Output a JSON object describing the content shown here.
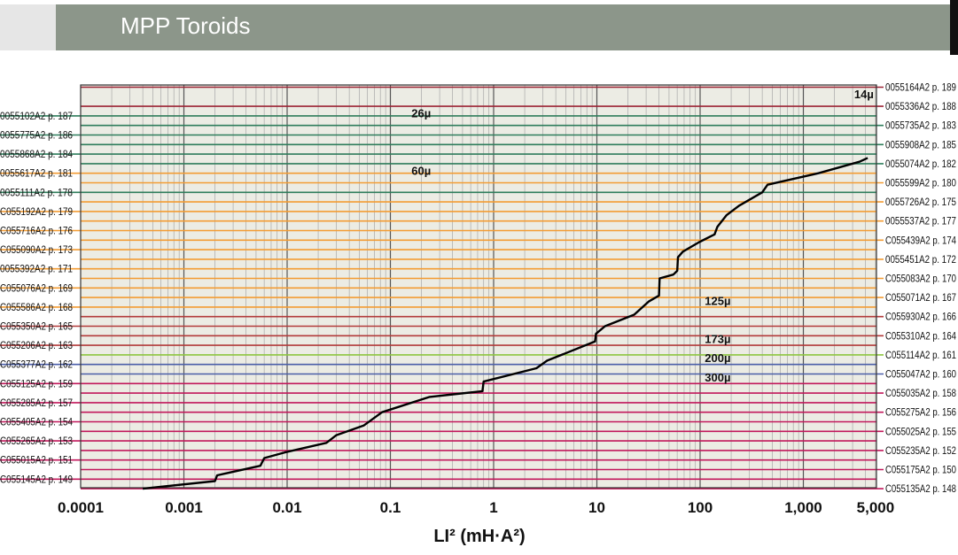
{
  "header": {
    "title": "MPP Toroids"
  },
  "chart_data": {
    "type": "line",
    "xlabel": "LI² (mH·A²)",
    "x_scale": "log",
    "xlim": [
      0.0001,
      5000
    ],
    "x_ticks": [
      "0.0001",
      "0.001",
      "0.01",
      "0.1",
      "1",
      "10",
      "100",
      "1,000",
      "5,000"
    ],
    "x_tick_values": [
      0.0001,
      0.001,
      0.01,
      0.1,
      1,
      10,
      100,
      1000,
      5000
    ],
    "grid": true,
    "colors": {
      "14u": "#9b2335",
      "26u": "#2e7d5b",
      "60u": "#f39c33",
      "125u": "#b23a3a",
      "147u": "#8dc63f",
      "173u": "#4a5ea8",
      "200u": "#c2185b",
      "300u": "#c2185b",
      "curve": "#000000",
      "plot_bg": "#ecece4"
    },
    "permeability_labels": [
      {
        "text": "14µ",
        "x": 3500,
        "row": 0.4
      },
      {
        "text": "26µ",
        "x": 0.18,
        "row": 1.4
      },
      {
        "text": "60µ",
        "x": 0.18,
        "row": 4.4
      },
      {
        "text": "125µ",
        "x": 125,
        "row": 11.2
      },
      {
        "text": "173µ",
        "x": 125,
        "row": 13.2
      },
      {
        "text": "200µ",
        "x": 125,
        "row": 14.2
      },
      {
        "text": "300µ",
        "x": 125,
        "row": 15.2
      }
    ],
    "left_labels": [
      {
        "text": "0055102A2 p. 187",
        "level": 1.5
      },
      {
        "text": "0055775A2 p. 186",
        "level": 2.5
      },
      {
        "text": "0055868A2 p. 184",
        "level": 3.5
      },
      {
        "text": "0055617A2 p. 181",
        "level": 4.5
      },
      {
        "text": "0055111A2 p. 178",
        "level": 5.5
      },
      {
        "text": "C055192A2 p. 179",
        "level": 6.5
      },
      {
        "text": "C055716A2 p. 176",
        "level": 7.5
      },
      {
        "text": "C055090A2 p. 173",
        "level": 8.5
      },
      {
        "text": "0055392A2 p. 171",
        "level": 9.5
      },
      {
        "text": "C055076A2 p. 169",
        "level": 10.5
      },
      {
        "text": "C055586A2 p. 168",
        "level": 11.5
      },
      {
        "text": "C055350A2 p. 165",
        "level": 12.5
      },
      {
        "text": "C055206A2 p. 163",
        "level": 13.5
      },
      {
        "text": "C055377A2 p. 162",
        "level": 14.5
      },
      {
        "text": "C055125A2 p. 159",
        "level": 15.5
      },
      {
        "text": "C055285A2 p. 157",
        "level": 16.5
      },
      {
        "text": "C055405A2 p. 154",
        "level": 17.5
      },
      {
        "text": "C055265A2 p. 153",
        "level": 18.5
      },
      {
        "text": "C055015A2 p. 151",
        "level": 19.5
      },
      {
        "text": "C055145A2 p. 149",
        "level": 20.5
      }
    ],
    "right_labels": [
      {
        "text": "0055164A2 p. 189",
        "level": 0
      },
      {
        "text": "0055336A2 p. 188",
        "level": 1
      },
      {
        "text": "0055735A2 p. 183",
        "level": 2
      },
      {
        "text": "0055908A2 p. 185",
        "level": 3
      },
      {
        "text": "0055074A2 p. 182",
        "level": 4
      },
      {
        "text": "0055599A2 p. 180",
        "level": 5
      },
      {
        "text": "0055726A2 p. 175",
        "level": 6
      },
      {
        "text": "0055537A2 p. 177",
        "level": 7
      },
      {
        "text": "C055439A2 p. 174",
        "level": 8
      },
      {
        "text": "0055451A2 p. 172",
        "level": 9
      },
      {
        "text": "C055083A2 p. 170",
        "level": 10
      },
      {
        "text": "C055071A2 p. 167",
        "level": 11
      },
      {
        "text": "C055930A2 p. 166",
        "level": 12
      },
      {
        "text": "C055310A2 p. 164",
        "level": 13
      },
      {
        "text": "C055114A2 p. 161",
        "level": 14
      },
      {
        "text": "C055047A2 p. 160",
        "level": 15
      },
      {
        "text": "C055035A2 p. 158",
        "level": 16
      },
      {
        "text": "C055275A2 p. 156",
        "level": 17
      },
      {
        "text": "C055025A2 p. 155",
        "level": 18
      },
      {
        "text": "C055235A2 p. 152",
        "level": 19
      },
      {
        "text": "C055175A2 p. 150",
        "level": 20
      },
      {
        "text": "C055135A2 p. 148",
        "level": 21
      }
    ],
    "left_line_colors": [
      "26u",
      "26u",
      "26u",
      "60u",
      "26u",
      "60u",
      "60u",
      "60u",
      "60u",
      "60u",
      "60u",
      "125u",
      "125u",
      "173u",
      "200u",
      "200u",
      "300u",
      "300u",
      "300u",
      "300u"
    ],
    "right_line_colors": [
      "14u",
      "14u",
      "26u",
      "26u",
      "26u",
      "60u",
      "60u",
      "60u",
      "60u",
      "60u",
      "60u",
      "60u",
      "125u",
      "125u",
      "147u",
      "173u",
      "200u",
      "200u",
      "300u",
      "300u",
      "300u",
      "300u"
    ],
    "curve": [
      [
        0.0004,
        21
      ],
      [
        0.002,
        20.6
      ],
      [
        0.0021,
        20.3
      ],
      [
        0.0055,
        19.8
      ],
      [
        0.006,
        19.4
      ],
      [
        0.0095,
        19.1
      ],
      [
        0.024,
        18.6
      ],
      [
        0.03,
        18.2
      ],
      [
        0.055,
        17.7
      ],
      [
        0.083,
        17.0
      ],
      [
        0.24,
        16.2
      ],
      [
        0.78,
        15.9
      ],
      [
        0.8,
        15.4
      ],
      [
        2.6,
        14.7
      ],
      [
        3.3,
        14.3
      ],
      [
        9.6,
        13.3
      ],
      [
        9.8,
        12.9
      ],
      [
        12,
        12.5
      ],
      [
        23,
        11.9
      ],
      [
        32,
        11.2
      ],
      [
        40,
        10.9
      ],
      [
        40.5,
        10.0
      ],
      [
        55,
        9.8
      ],
      [
        60,
        9.6
      ],
      [
        61,
        8.9
      ],
      [
        68,
        8.6
      ],
      [
        98,
        8.1
      ],
      [
        138,
        7.7
      ],
      [
        147,
        7.3
      ],
      [
        180,
        6.7
      ],
      [
        238,
        6.2
      ],
      [
        400,
        5.5
      ],
      [
        450,
        5.1
      ],
      [
        1400,
        4.5
      ],
      [
        3500,
        3.9
      ],
      [
        4200,
        3.7
      ]
    ]
  }
}
